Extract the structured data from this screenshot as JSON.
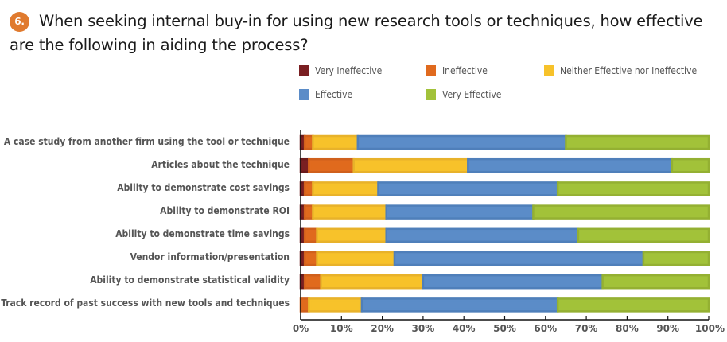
{
  "question": {
    "number": "6.",
    "text": "When seeking internal buy-in for using new research tools or techniques, how effective are the following in aiding the process?"
  },
  "colors": {
    "badge": "#e07a2e",
    "series": [
      "#7a1f22",
      "#e06a1e",
      "#f7c22a",
      "#5b8cc8",
      "#a2c23a"
    ],
    "series_border": [
      "#6a1a1c",
      "#d0601c",
      "#e8b22a",
      "#4f7fba",
      "#94b032"
    ]
  },
  "chart_data": {
    "type": "bar",
    "orientation": "horizontal",
    "stacked": true,
    "title": "When seeking internal buy-in for using new research tools or techniques, how effective are the following in aiding the process?",
    "xlabel": "",
    "ylabel": "",
    "xlim": [
      0,
      100
    ],
    "x_ticks": [
      "0%",
      "10%",
      "20%",
      "30%",
      "40%",
      "50%",
      "60%",
      "70%",
      "80%",
      "90%",
      "100%"
    ],
    "legend_position": "top-right",
    "categories": [
      "A case study from another firm using the tool or technique",
      "Articles about the technique",
      "Ability to demonstrate cost savings",
      "Ability to demonstrate ROI",
      "Ability to demonstrate time savings",
      "Vendor information/presentation",
      "Ability to demonstrate statistical validity",
      "Track record of past success with new tools and techniques"
    ],
    "series": [
      {
        "name": "Very Ineffective",
        "values": [
          1,
          2,
          1,
          1,
          1,
          1,
          1,
          0
        ]
      },
      {
        "name": "Ineffective",
        "values": [
          2,
          11,
          2,
          2,
          3,
          3,
          4,
          2
        ]
      },
      {
        "name": "Neither Effective nor Ineffective",
        "values": [
          11,
          28,
          16,
          18,
          17,
          19,
          25,
          13
        ]
      },
      {
        "name": "Effective",
        "values": [
          51,
          50,
          44,
          36,
          47,
          61,
          44,
          48
        ]
      },
      {
        "name": "Very Effective",
        "values": [
          35,
          9,
          37,
          43,
          32,
          16,
          26,
          37
        ]
      }
    ]
  }
}
